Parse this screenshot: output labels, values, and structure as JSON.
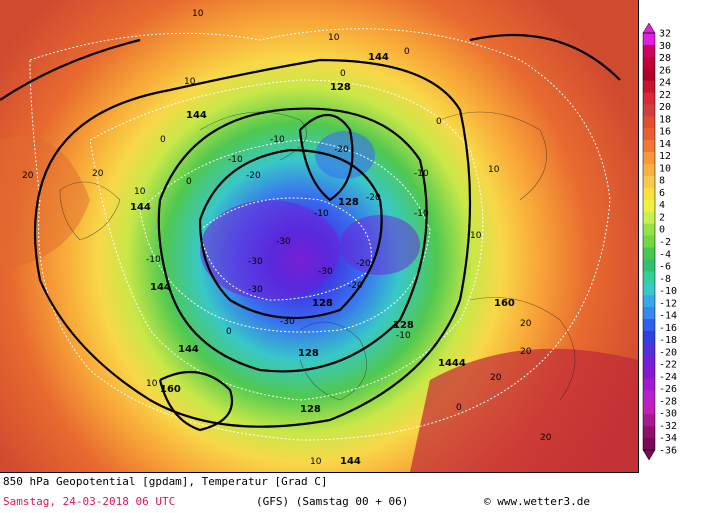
{
  "map": {
    "product_title": "850 hPa Geopotential [gpdam], Temperatur [Grad C]",
    "run_date": "Samstag, 24-03-2018  06 UTC",
    "model_info": "(GFS)  (Samstag 00 + 06)",
    "copyright": "© www.wetter3.de",
    "geopotential_labels": [
      "144",
      "144",
      "144",
      "144",
      "144",
      "128",
      "128",
      "128",
      "128",
      "128",
      "160",
      "160",
      "1444",
      "144",
      "128"
    ],
    "temperature_labels": [
      "10",
      "10",
      "10",
      "10",
      "10",
      "10",
      "10",
      "10",
      "20",
      "20",
      "20",
      "20",
      "20",
      "20",
      "0",
      "0",
      "0",
      "0",
      "0",
      "0",
      "0",
      "-10",
      "-10",
      "-10",
      "-10",
      "-10",
      "-10",
      "-10",
      "-20",
      "-20",
      "-20",
      "-20",
      "-20",
      "-30",
      "-30",
      "-30",
      "-30",
      "-30"
    ]
  },
  "legend": {
    "ticks": [
      "32",
      "30",
      "28",
      "26",
      "24",
      "22",
      "20",
      "18",
      "16",
      "14",
      "12",
      "10",
      "8",
      "6",
      "4",
      "2",
      "0",
      "-2",
      "-4",
      "-6",
      "-8",
      "-10",
      "-12",
      "-14",
      "-16",
      "-18",
      "-20",
      "-22",
      "-24",
      "-26",
      "-28",
      "-30",
      "-32",
      "-34",
      "-36"
    ],
    "colors": [
      "#e020e0",
      "#d00060",
      "#c0003a",
      "#b00028",
      "#c8142c",
      "#d8283a",
      "#d04040",
      "#e05030",
      "#e86030",
      "#f07830",
      "#f89838",
      "#f8b040",
      "#f8c850",
      "#f8e040",
      "#f0f040",
      "#c8f050",
      "#98e048",
      "#70d840",
      "#48c850",
      "#30c070",
      "#30d098",
      "#38c8c8",
      "#38a8e8",
      "#3888f0",
      "#3060f0",
      "#3040e0",
      "#5030d8",
      "#7020d8",
      "#8818d0",
      "#a018d0",
      "#b820c8",
      "#c020b8",
      "#a81890",
      "#901070",
      "#780a58"
    ]
  }
}
